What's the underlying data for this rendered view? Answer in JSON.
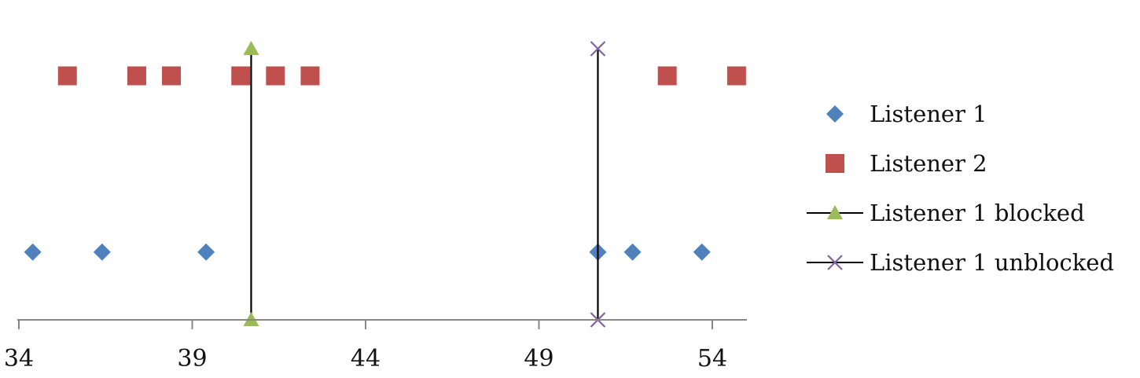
{
  "chart_data": {
    "type": "scatter",
    "title": "",
    "xlabel": "",
    "ylabel": "",
    "xlim": [
      34,
      55
    ],
    "ylim": [
      0,
      10
    ],
    "x_ticks": [
      34,
      39,
      44,
      49,
      54
    ],
    "x_tick_labels": [
      "34",
      "39",
      "44",
      "49",
      "54"
    ],
    "y_axis_visible": false,
    "grid": false,
    "legend_position": "right",
    "series": [
      {
        "name": "Listener 1",
        "marker": "diamond",
        "color": "#4F81BD",
        "line": false,
        "points": [
          [
            34.4,
            2.5
          ],
          [
            36.4,
            2.5
          ],
          [
            39.4,
            2.5
          ],
          [
            50.7,
            2.5
          ],
          [
            51.7,
            2.5
          ],
          [
            53.7,
            2.5
          ]
        ]
      },
      {
        "name": "Listener 2",
        "marker": "square",
        "color": "#C0504D",
        "line": false,
        "points": [
          [
            35.4,
            9
          ],
          [
            37.4,
            9
          ],
          [
            38.4,
            9
          ],
          [
            40.4,
            9
          ],
          [
            41.4,
            9
          ],
          [
            42.4,
            9
          ],
          [
            52.7,
            9
          ],
          [
            54.7,
            9
          ]
        ]
      },
      {
        "name": "Listener 1 blocked",
        "marker": "triangle",
        "color": "#9BBB59",
        "line": true,
        "line_color": "#000000",
        "points": [
          [
            40.7,
            0
          ],
          [
            40.7,
            10
          ]
        ]
      },
      {
        "name": "Listener 1 unblocked",
        "marker": "x",
        "color": "#8064A2",
        "line": true,
        "line_color": "#000000",
        "points": [
          [
            50.7,
            0
          ],
          [
            50.7,
            10
          ]
        ]
      }
    ]
  }
}
